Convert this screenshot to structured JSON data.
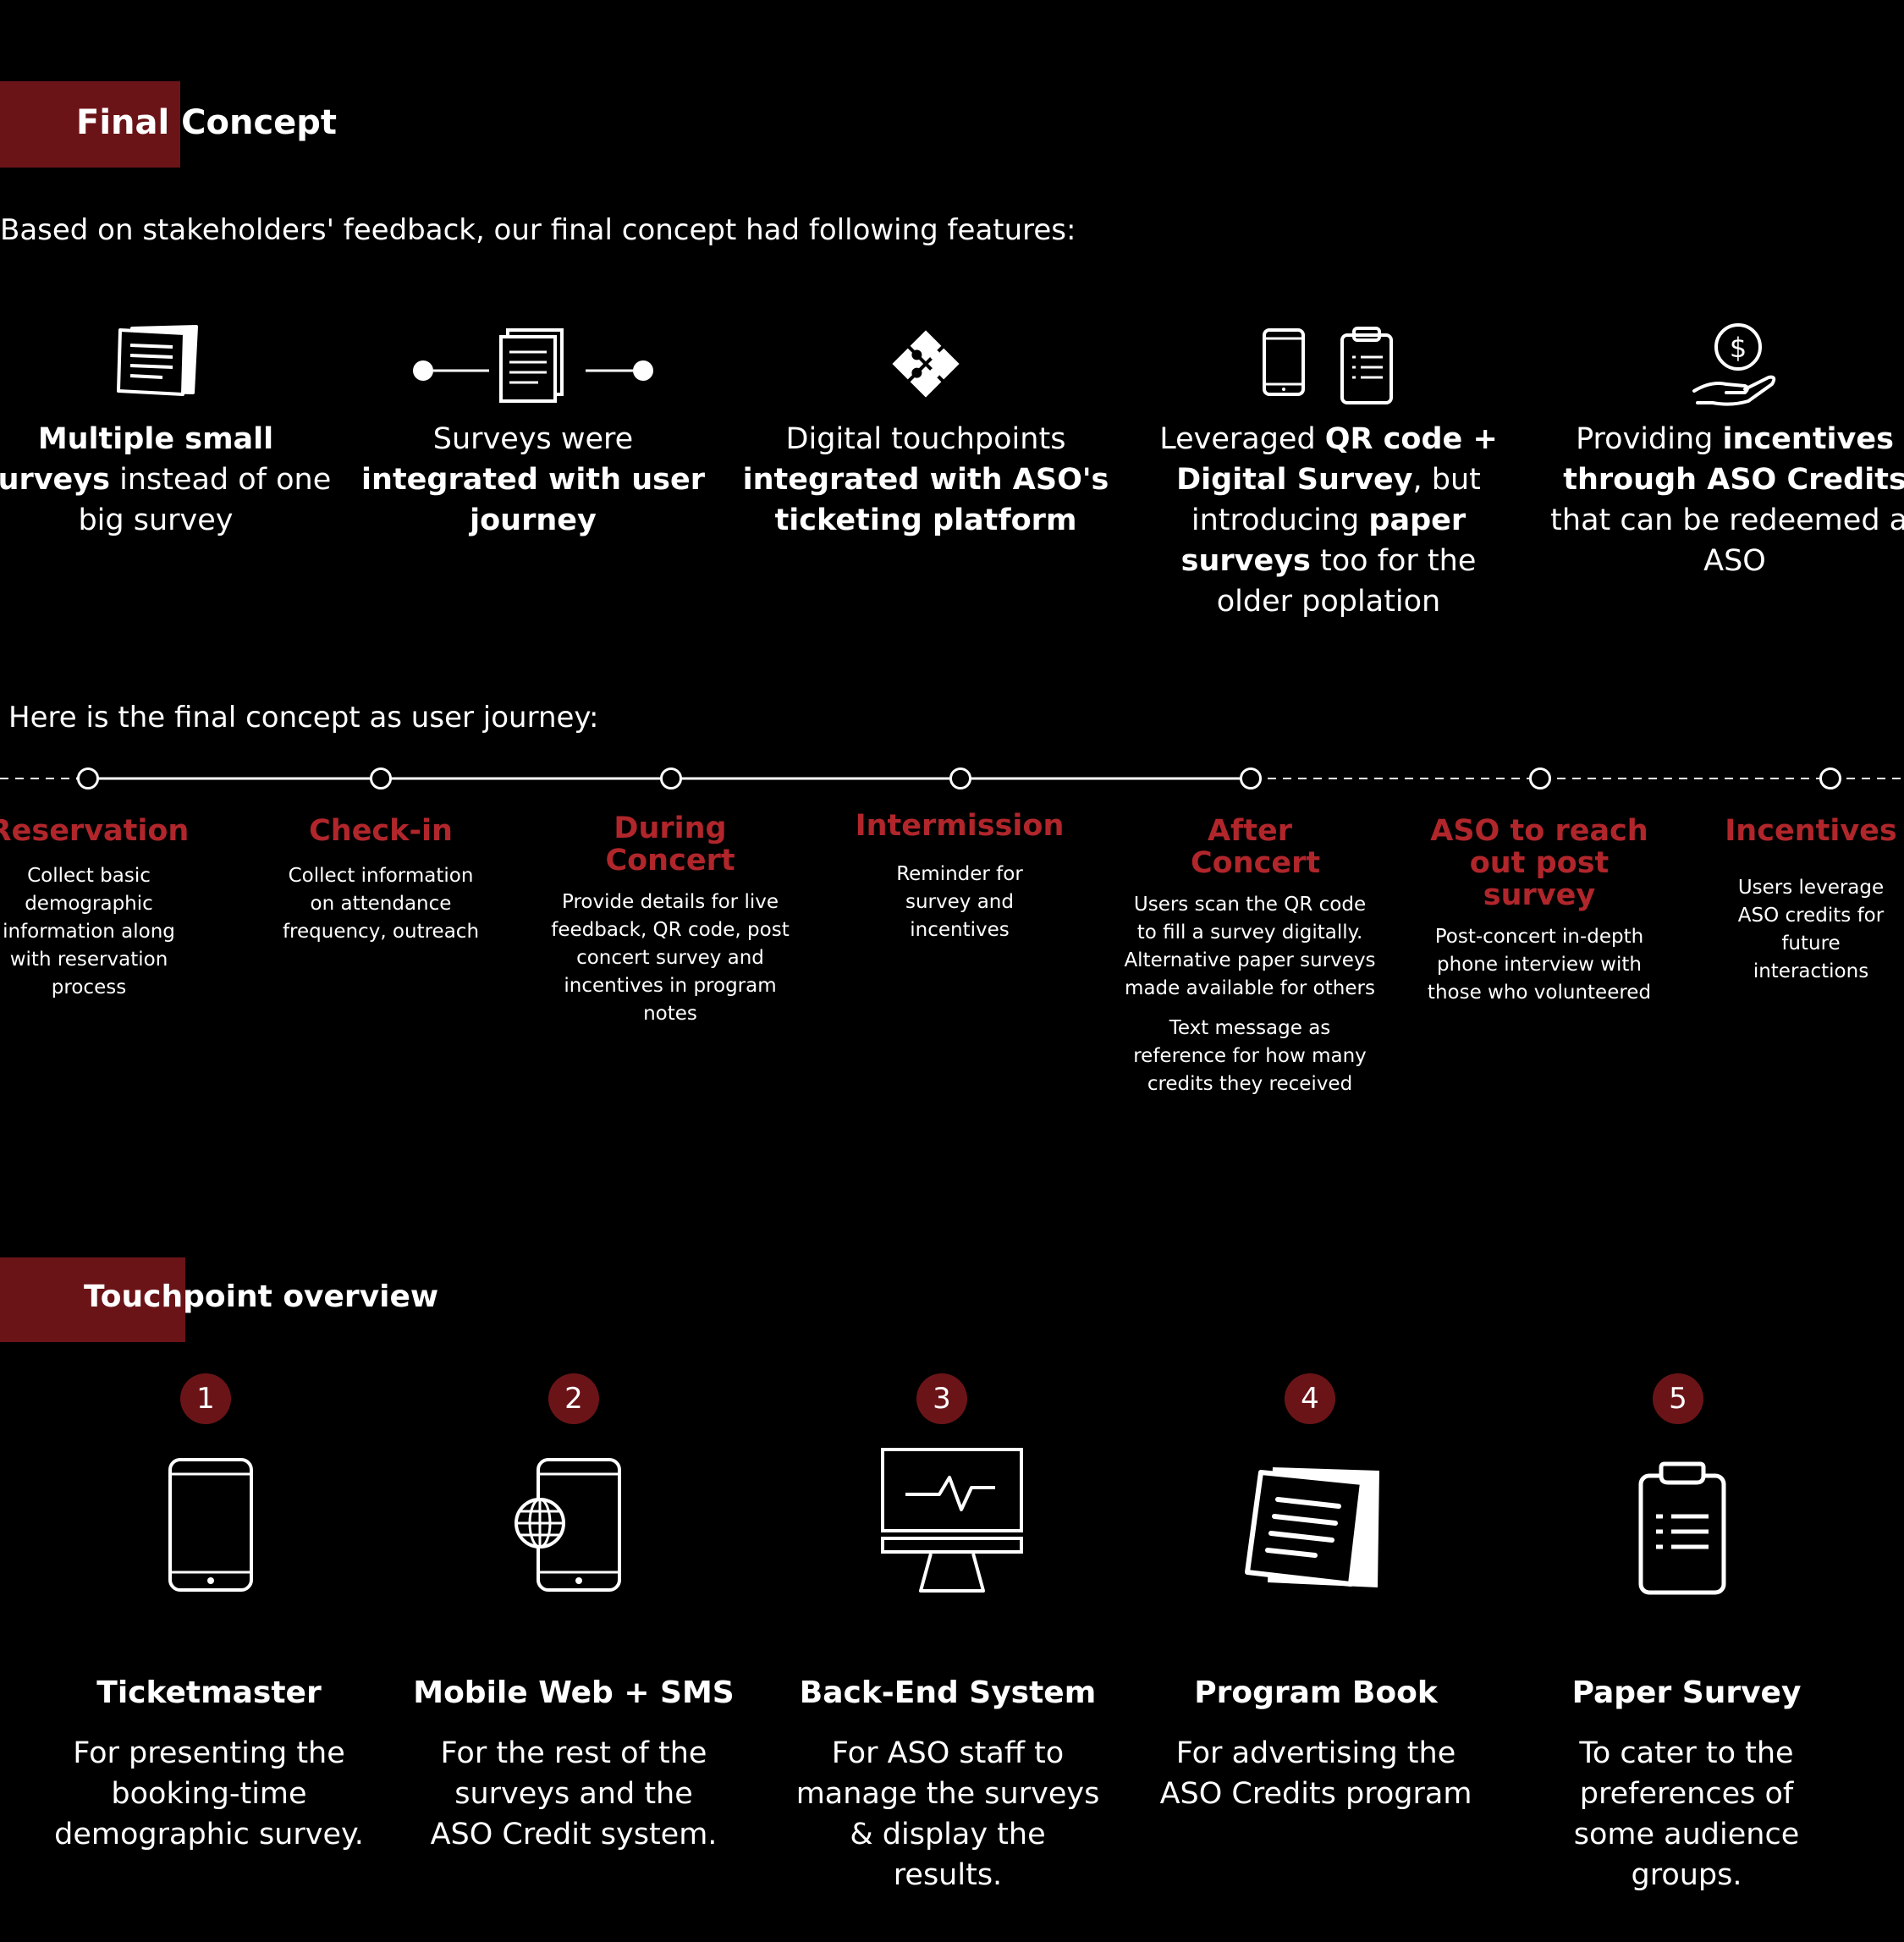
{
  "final_concept": {
    "title": "Final Concept",
    "intro": "Based on stakeholders' feedback, our final concept had following features:",
    "features": [
      {
        "icon": "document-icon",
        "parts": [
          {
            "t": "Multiple small",
            "b": true
          },
          {
            "t": " ",
            "b": false
          },
          {
            "t": "surveys",
            "b": true
          },
          {
            "t": " instead of one big survey",
            "b": false
          }
        ]
      },
      {
        "icon": "connected-documents-icon",
        "parts": [
          {
            "t": "Surveys were ",
            "b": false
          },
          {
            "t": "integrated with user journey",
            "b": true
          }
        ]
      },
      {
        "icon": "puzzle-icon",
        "parts": [
          {
            "t": "Digital touchpoints ",
            "b": false
          },
          {
            "t": "integrated with ASO's ticketing platform",
            "b": true
          }
        ]
      },
      {
        "icon": "phone-and-clipboard-icon",
        "parts": [
          {
            "t": "Leveraged ",
            "b": false
          },
          {
            "t": "QR code + Digital Survey",
            "b": true
          },
          {
            "t": ", but introducing ",
            "b": false
          },
          {
            "t": "paper surveys",
            "b": true
          },
          {
            "t": " too for the older poplation",
            "b": false
          }
        ]
      },
      {
        "icon": "hand-coin-icon",
        "parts": [
          {
            "t": "Providing ",
            "b": false
          },
          {
            "t": "incentives through ASO Credits",
            "b": true
          },
          {
            "t": " that can be redeemed at ASO",
            "b": false
          }
        ]
      }
    ]
  },
  "journey": {
    "intro": "Here is the final concept as user journey:",
    "stages": [
      {
        "title": "Reservation",
        "desc": "Collect basic demographic information along with reservation process",
        "extra": ""
      },
      {
        "title": "Check-in",
        "desc": "Collect information on attendance frequency, outreach",
        "extra": ""
      },
      {
        "title": "During Concert",
        "desc": "Provide details for live feedback, QR code, post concert survey and incentives in program notes",
        "extra": ""
      },
      {
        "title": "Intermission",
        "desc": "Reminder for survey and incentives",
        "extra": ""
      },
      {
        "title": "After Concert",
        "desc": "Users scan the QR code to fill a survey digitally. Alternative paper surveys made available for others",
        "extra": "Text message as reference for how many credits they received"
      },
      {
        "title": "ASO to reach out post survey",
        "desc": "Post-concert in-depth phone interview with those who volunteered",
        "extra": ""
      },
      {
        "title": "Incentives",
        "desc": "Users leverage ASO credits for future interactions",
        "extra": ""
      }
    ]
  },
  "touchpoints": {
    "title": "Touchpoint overview",
    "items": [
      {
        "number": "1",
        "icon": "tablet-icon",
        "title": "Ticketmaster",
        "desc": "For presenting the booking-time demographic survey."
      },
      {
        "number": "2",
        "icon": "mobile-web-icon",
        "title": "Mobile Web + SMS",
        "desc": "For the rest of the surveys and the ASO Credit system."
      },
      {
        "number": "3",
        "icon": "monitor-icon",
        "title": "Back-End System",
        "desc": "For ASO staff to manage the surveys & display the results."
      },
      {
        "number": "4",
        "icon": "program-book-icon",
        "title": "Program Book",
        "desc": "For advertising the ASO Credits program"
      },
      {
        "number": "5",
        "icon": "clipboard-icon",
        "title": "Paper Survey",
        "desc": "To cater to the preferences of some audience groups."
      }
    ]
  },
  "colors": {
    "accent": "#6b1418",
    "stage_title": "#b0262b",
    "background": "#000000",
    "text": "#ffffff"
  }
}
